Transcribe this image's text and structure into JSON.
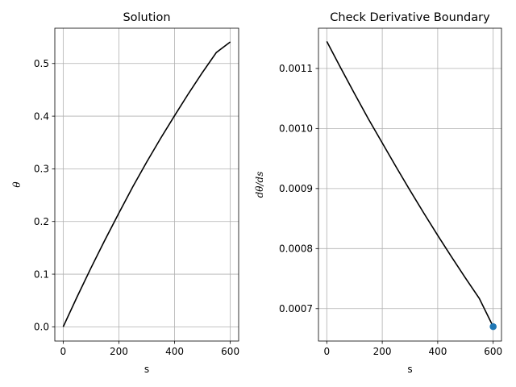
{
  "chart_data": [
    {
      "type": "line",
      "title": "Solution",
      "xlabel": "s",
      "ylabel": "θ",
      "xlim": [
        -30,
        630
      ],
      "ylim": [
        -0.027,
        0.567
      ],
      "xticks": [
        0,
        200,
        400,
        600
      ],
      "yticks": [
        0.0,
        0.1,
        0.2,
        0.3,
        0.4,
        0.5
      ],
      "xtick_labels": [
        "0",
        "200",
        "400",
        "600"
      ],
      "ytick_labels": [
        "0.0",
        "0.1",
        "0.2",
        "0.3",
        "0.4",
        "0.5"
      ],
      "grid": true,
      "series": [
        {
          "color": "#000000",
          "x": [
            0,
            50,
            100,
            150,
            200,
            250,
            300,
            350,
            400,
            450,
            500,
            550,
            600
          ],
          "y": [
            0.0,
            0.057,
            0.112,
            0.165,
            0.216,
            0.266,
            0.313,
            0.358,
            0.401,
            0.443,
            0.483,
            0.521,
            0.541
          ]
        }
      ]
    },
    {
      "type": "line",
      "title": "Check Derivative Boundary",
      "xlabel": "s",
      "ylabel": "dθ/ds",
      "xlim": [
        -30,
        630
      ],
      "ylim": [
        0.000646,
        0.001167
      ],
      "xticks": [
        0,
        200,
        400,
        600
      ],
      "yticks": [
        0.0007,
        0.0008,
        0.0009,
        0.001,
        0.0011
      ],
      "xtick_labels": [
        "0",
        "200",
        "400",
        "600"
      ],
      "ytick_labels": [
        "0.0007",
        "0.0008",
        "0.0009",
        "0.0010",
        "0.0011"
      ],
      "grid": true,
      "series": [
        {
          "color": "#000000",
          "x": [
            0,
            50,
            100,
            150,
            200,
            250,
            300,
            350,
            400,
            450,
            500,
            550,
            600
          ],
          "y": [
            0.001145,
            0.001101,
            0.001058,
            0.001016,
            0.000976,
            0.000936,
            0.000897,
            0.000859,
            0.000822,
            0.000786,
            0.000751,
            0.000717,
            0.00067
          ]
        }
      ],
      "markers": [
        {
          "x": 600,
          "y": 0.00067,
          "color": "#1f77b4"
        }
      ]
    }
  ]
}
